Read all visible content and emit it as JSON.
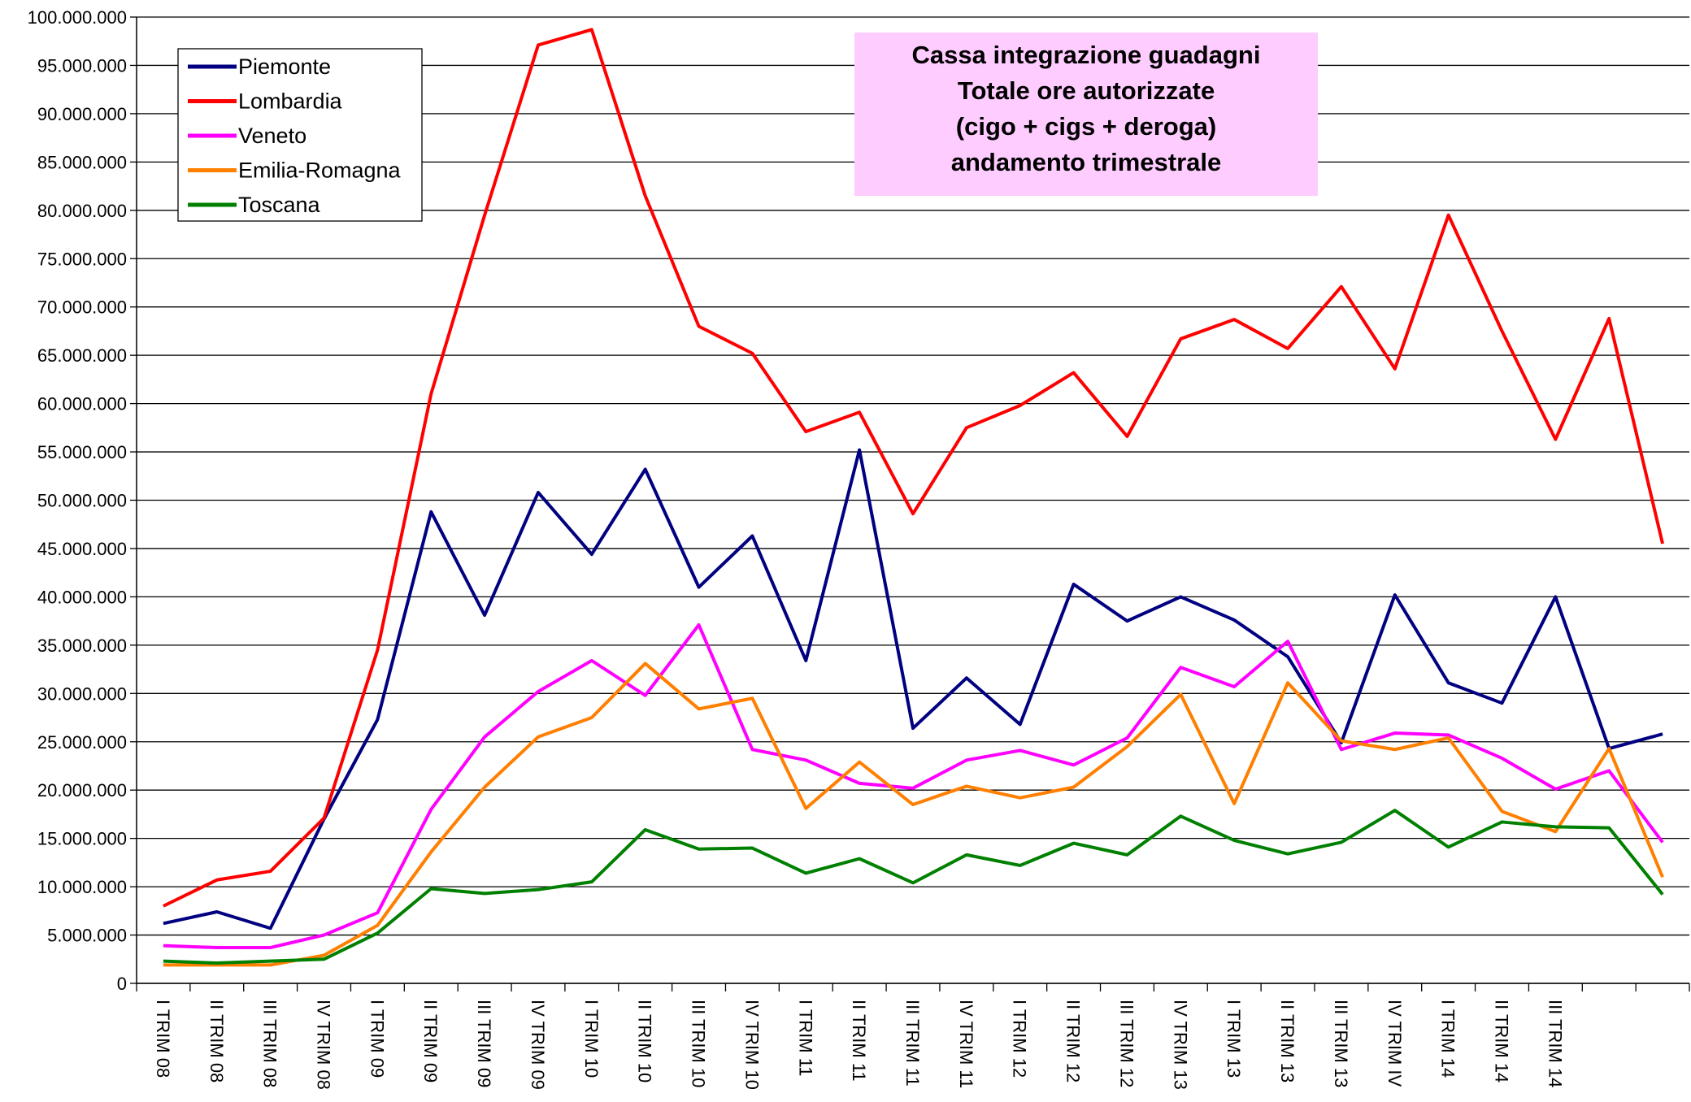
{
  "chart_data": {
    "type": "line",
    "title": [
      "Cassa integrazione guadagni",
      "Totale ore autorizzate",
      "(cigo + cigs + deroga)",
      "andamento trimestrale"
    ],
    "title_background": "#ffccff",
    "categories": [
      "I TRIM 08",
      "II TRIM 08",
      "III TRIM 08",
      "IV TRIM 08",
      "I TRIM 09",
      "II TRIM 09",
      "III TRIM 09",
      "IV TRIM 09",
      "I TRIM 10",
      "II TRIM 10",
      "III TRIM 10",
      "IV TRIM 10",
      "I TRIM 11",
      "II TRIM 11",
      "III TRIM 11",
      "IV TRIM 11",
      "I TRIM 12",
      "II TRIM 12",
      "III TRIM 12",
      "IV TRIM 13",
      "I TRIM 13",
      "II TRIM 13",
      "III TRIM 13",
      "IV TRIM IV",
      "I TRIM 14",
      "II TRIM 14",
      "III TRIM 14",
      null,
      null
    ],
    "series": [
      {
        "name": "Piemonte",
        "color": "#000080",
        "values": [
          6200000,
          7400000,
          5700000,
          17000000,
          27300000,
          48800000,
          38100000,
          50800000,
          44400000,
          53200000,
          41000000,
          46300000,
          33400000,
          55200000,
          26400000,
          31600000,
          26800000,
          41300000,
          37500000,
          40000000,
          37600000,
          33800000,
          24900000,
          40200000,
          31100000,
          29000000,
          40000000,
          24300000,
          25800000
        ]
      },
      {
        "name": "Lombardia",
        "color": "#ff0000",
        "values": [
          8000000,
          10700000,
          11600000,
          17100000,
          34500000,
          61000000,
          79500000,
          97100000,
          98700000,
          81500000,
          68000000,
          65200000,
          57100000,
          59100000,
          48600000,
          57500000,
          59800000,
          63200000,
          56600000,
          66700000,
          68700000,
          65700000,
          72100000,
          63600000,
          79500000,
          67500000,
          56300000,
          68800000,
          45500000
        ]
      },
      {
        "name": "Veneto",
        "color": "#ff00ff",
        "values": [
          3900000,
          3700000,
          3700000,
          5000000,
          7300000,
          18000000,
          25500000,
          30200000,
          33400000,
          29800000,
          37100000,
          24200000,
          23100000,
          20700000,
          20200000,
          23100000,
          24100000,
          22600000,
          25400000,
          32700000,
          30700000,
          35400000,
          24200000,
          25900000,
          25700000,
          23300000,
          20100000,
          22000000,
          14600000
        ]
      },
      {
        "name": "Emilia-Romagna",
        "color": "#ff7f00",
        "values": [
          1900000,
          1900000,
          1900000,
          2900000,
          6000000,
          13600000,
          20300000,
          25500000,
          27500000,
          33100000,
          28400000,
          29500000,
          18100000,
          22900000,
          18500000,
          20400000,
          19200000,
          20300000,
          24500000,
          29900000,
          18600000,
          31100000,
          25100000,
          24200000,
          25400000,
          17800000,
          15700000,
          24300000,
          11000000
        ]
      },
      {
        "name": "Toscana",
        "color": "#008000",
        "values": [
          2300000,
          2100000,
          2300000,
          2500000,
          5200000,
          9800000,
          9300000,
          9700000,
          10500000,
          15900000,
          13900000,
          14000000,
          11400000,
          12900000,
          10400000,
          13300000,
          12200000,
          14500000,
          13300000,
          17300000,
          14800000,
          13400000,
          14600000,
          17900000,
          14100000,
          16700000,
          16200000,
          16100000,
          9200000
        ]
      }
    ],
    "ylim": [
      0,
      100000000
    ],
    "yticks": [
      0,
      {
        "value": 5000000,
        "label": "5.000.000"
      },
      {
        "value": 10000000,
        "label": "10.000.000"
      },
      {
        "value": 15000000,
        "label": "15.000.000"
      },
      {
        "value": 20000000,
        "label": "20.000.000"
      },
      {
        "value": 25000000,
        "label": "25.000.000"
      },
      {
        "value": 30000000,
        "label": "30.000.000"
      },
      {
        "value": 35000000,
        "label": "35.000.000"
      },
      {
        "value": 40000000,
        "label": "40.000.000"
      },
      {
        "value": 45000000,
        "label": "45.000.000"
      },
      {
        "value": 50000000,
        "label": "50.000.000"
      },
      {
        "value": 55000000,
        "label": "55.000.000"
      },
      {
        "value": 60000000,
        "label": "60.000.000"
      },
      {
        "value": 65000000,
        "label": "65.000.000"
      },
      {
        "value": 70000000,
        "label": "70.000.000"
      },
      {
        "value": 75000000,
        "label": "75.000.000"
      },
      {
        "value": 80000000,
        "label": "80.000.000"
      },
      {
        "value": 85000000,
        "label": "85.000.000"
      },
      {
        "value": 90000000,
        "label": "90.000.000"
      },
      {
        "value": 95000000,
        "label": "95.000.000"
      },
      {
        "value": 100000000,
        "label": "100.000.000"
      }
    ],
    "grid": true,
    "legend": "top-left"
  }
}
